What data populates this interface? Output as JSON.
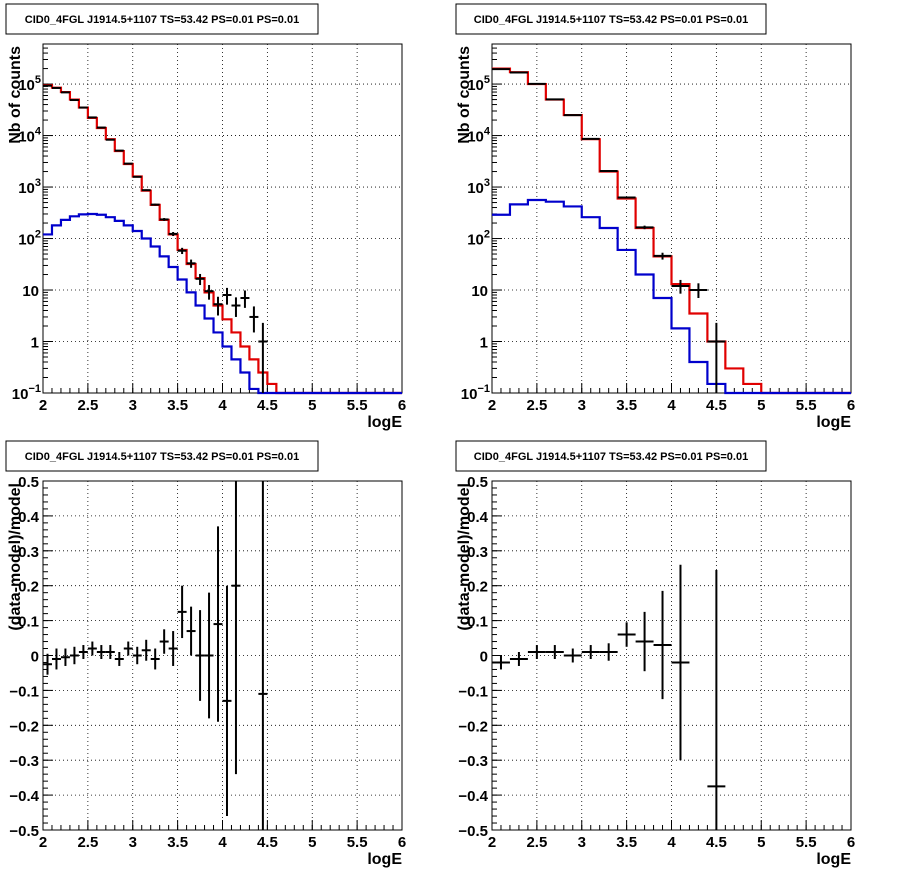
{
  "chart_data": [
    {
      "type": "line",
      "title": "CID0_4FGL J1914.5+1107 TS=53.42 PS=0.01 PS=0.01",
      "xlabel": "logE",
      "ylabel": "Nb of counts",
      "xlim": [
        2,
        6
      ],
      "ylim": [
        0.1,
        600000
      ],
      "log_y": true,
      "grid": true,
      "x_ticks": [
        "2",
        "2.5",
        "3",
        "3.5",
        "4",
        "4.5",
        "5",
        "5.5",
        "6"
      ],
      "y_ticks": [
        {
          "value": 0.1,
          "label": "10",
          "sup": "−1"
        },
        {
          "value": 1,
          "label": "1",
          "sup": ""
        },
        {
          "value": 10,
          "label": "10",
          "sup": ""
        },
        {
          "value": 100,
          "label": "10",
          "sup": "2"
        },
        {
          "value": 1000,
          "label": "10",
          "sup": "3"
        },
        {
          "value": 10000,
          "label": "10",
          "sup": "4"
        },
        {
          "value": 100000,
          "label": "10",
          "sup": "5"
        }
      ],
      "bin_edges": [
        2.0,
        2.1,
        2.2,
        2.3,
        2.4,
        2.5,
        2.6,
        2.7,
        2.8,
        2.9,
        3.0,
        3.1,
        3.2,
        3.3,
        3.4,
        3.5,
        3.6,
        3.7,
        3.8,
        3.9,
        4.0,
        4.1,
        4.2,
        4.3,
        4.4,
        4.5,
        4.6,
        4.7,
        4.8,
        4.9,
        5.0,
        5.1,
        5.2,
        5.3,
        5.4,
        5.5,
        5.6,
        5.7,
        5.8,
        5.9,
        6.0
      ],
      "series": [
        {
          "color": "#e00000",
          "style": "step",
          "values": [
            95000,
            85000,
            70000,
            50000,
            35000,
            22000,
            14000,
            8500,
            5000,
            2800,
            1600,
            850,
            450,
            230,
            120,
            60,
            32,
            17,
            9,
            5,
            2.7,
            1.5,
            0.8,
            0.45,
            0.25,
            0.15,
            0.1,
            0.1,
            0.1,
            0.1,
            0.1,
            0.1,
            0.1,
            0.1,
            0.1,
            0.1,
            0.1,
            0.1,
            0.1,
            0.1
          ]
        },
        {
          "color": "#0000cc",
          "style": "step",
          "values": [
            120,
            180,
            230,
            270,
            295,
            300,
            290,
            260,
            220,
            180,
            140,
            100,
            70,
            45,
            28,
            16,
            9,
            5,
            2.8,
            1.5,
            0.8,
            0.45,
            0.25,
            0.12,
            0.1,
            0.1,
            0.1,
            0.1,
            0.1,
            0.1,
            0.1,
            0.1,
            0.1,
            0.1,
            0.1,
            0.1,
            0.1,
            0.1,
            0.1,
            0.1
          ]
        },
        {
          "color": "#000000",
          "style": "points",
          "x": [
            2.05,
            2.15,
            2.25,
            2.35,
            2.45,
            2.55,
            2.65,
            2.75,
            2.85,
            2.95,
            3.05,
            3.15,
            3.25,
            3.35,
            3.45,
            3.55,
            3.65,
            3.75,
            3.85,
            3.95,
            4.05,
            4.15,
            4.25,
            4.35,
            4.45
          ],
          "y": [
            93000,
            84000,
            69000,
            49000,
            35000,
            22500,
            14300,
            8300,
            5100,
            2850,
            1580,
            870,
            455,
            235,
            123,
            58,
            33,
            16.5,
            9.5,
            5.3,
            8,
            5,
            7,
            3,
            1
          ],
          "ylow": [
            92000,
            83000,
            68000,
            48500,
            34500,
            22200,
            14100,
            8200,
            5000,
            2800,
            1540,
            840,
            435,
            220,
            112,
            50,
            27,
            12.5,
            6.5,
            3.2,
            5.2,
            3,
            4.5,
            1.5,
            0.1
          ],
          "yhigh": [
            94000,
            85000,
            70000,
            49500,
            35500,
            22800,
            14500,
            8400,
            5200,
            2900,
            1620,
            900,
            475,
            250,
            134,
            66,
            39,
            20.5,
            12.5,
            7.4,
            11,
            7.2,
            9.8,
            4.8,
            2.3
          ]
        }
      ]
    },
    {
      "type": "line",
      "title": "CID0_4FGL J1914.5+1107 TS=53.42 PS=0.01 PS=0.01",
      "xlabel": "logE",
      "ylabel": "Nb of counts",
      "xlim": [
        2,
        6
      ],
      "ylim": [
        0.1,
        600000
      ],
      "log_y": true,
      "grid": true,
      "x_ticks": [
        "2",
        "2.5",
        "3",
        "3.5",
        "4",
        "4.5",
        "5",
        "5.5",
        "6"
      ],
      "y_ticks": [
        {
          "value": 0.1,
          "label": "10",
          "sup": "−1"
        },
        {
          "value": 1,
          "label": "1",
          "sup": ""
        },
        {
          "value": 10,
          "label": "10",
          "sup": ""
        },
        {
          "value": 100,
          "label": "10",
          "sup": "2"
        },
        {
          "value": 1000,
          "label": "10",
          "sup": "3"
        },
        {
          "value": 10000,
          "label": "10",
          "sup": "4"
        },
        {
          "value": 100000,
          "label": "10",
          "sup": "5"
        }
      ],
      "bin_edges": [
        2.0,
        2.2,
        2.4,
        2.6,
        2.8,
        3.0,
        3.2,
        3.4,
        3.6,
        3.8,
        4.0,
        4.2,
        4.4,
        4.6,
        4.8,
        5.0,
        5.2,
        5.4,
        5.6,
        5.8,
        6.0
      ],
      "series": [
        {
          "color": "#e00000",
          "style": "step",
          "values": [
            200000,
            170000,
            100000,
            50000,
            25000,
            8500,
            2000,
            600,
            160,
            45,
            13,
            3.5,
            1,
            0.3,
            0.15,
            0.1,
            0.1,
            0.1,
            0.1,
            0.1
          ]
        },
        {
          "color": "#0000cc",
          "style": "step",
          "values": [
            290,
            460,
            560,
            520,
            420,
            260,
            160,
            60,
            20,
            7,
            1.8,
            0.4,
            0.15,
            0.1,
            0.1,
            0.1,
            0.1,
            0.1,
            0.1,
            0.1
          ]
        },
        {
          "color": "#000000",
          "style": "points",
          "x": [
            2.1,
            2.3,
            2.5,
            2.7,
            2.9,
            3.1,
            3.3,
            3.5,
            3.7,
            3.9,
            4.1,
            4.3,
            4.5
          ],
          "y": [
            195000,
            168000,
            101000,
            50500,
            24900,
            8600,
            2050,
            625,
            165,
            46,
            12,
            10,
            1
          ],
          "ylow": [
            194000,
            167000,
            100500,
            50200,
            24750,
            8500,
            1990,
            600,
            152,
            39,
            8.5,
            7,
            0.1
          ],
          "yhigh": [
            196000,
            169000,
            101500,
            50800,
            25050,
            8700,
            2110,
            650,
            178,
            53,
            15.7,
            13.5,
            2.3
          ]
        }
      ]
    },
    {
      "type": "scatter",
      "title": "CID0_4FGL J1914.5+1107 TS=53.42 PS=0.01 PS=0.01",
      "xlabel": "logE",
      "ylabel": "(data-model)/model",
      "xlim": [
        2,
        6
      ],
      "ylim": [
        -0.5,
        0.5
      ],
      "grid": true,
      "x_ticks": [
        "2",
        "2.5",
        "3",
        "3.5",
        "4",
        "4.5",
        "5",
        "5.5",
        "6"
      ],
      "y_ticks": [
        "−0.5",
        "−0.4",
        "−0.3",
        "−0.2",
        "−0.1",
        "0",
        "0.1",
        "0.2",
        "0.3",
        "0.4",
        "0.5"
      ],
      "series": [
        {
          "color": "#000000",
          "style": "points",
          "xerr": 0.05,
          "x": [
            2.05,
            2.15,
            2.25,
            2.35,
            2.45,
            2.55,
            2.65,
            2.75,
            2.85,
            2.95,
            3.05,
            3.15,
            3.25,
            3.35,
            3.45,
            3.55,
            3.65,
            3.75,
            3.85,
            3.95,
            4.05,
            4.15,
            4.45
          ],
          "y": [
            -0.025,
            -0.01,
            -0.005,
            0.0,
            0.01,
            0.02,
            0.01,
            0.01,
            -0.01,
            0.02,
            0.0,
            0.015,
            -0.01,
            0.04,
            0.02,
            0.125,
            0.07,
            0.0,
            0.0,
            0.09,
            -0.13,
            0.2,
            -0.11
          ],
          "yerr": [
            0.03,
            0.03,
            0.025,
            0.025,
            0.02,
            0.02,
            0.02,
            0.02,
            0.02,
            0.02,
            0.025,
            0.03,
            0.03,
            0.035,
            0.05,
            0.075,
            0.07,
            0.13,
            0.18,
            0.28,
            0.33,
            0.54,
            0.69
          ]
        }
      ]
    },
    {
      "type": "scatter",
      "title": "CID0_4FGL J1914.5+1107 TS=53.42 PS=0.01 PS=0.01",
      "xlabel": "logE",
      "ylabel": "(data-model)/model",
      "xlim": [
        2,
        6
      ],
      "ylim": [
        -0.5,
        0.5
      ],
      "grid": true,
      "x_ticks": [
        "2",
        "2.5",
        "3",
        "3.5",
        "4",
        "4.5",
        "5",
        "5.5",
        "6"
      ],
      "y_ticks": [
        "−0.5",
        "−0.4",
        "−0.3",
        "−0.2",
        "−0.1",
        "0",
        "0.1",
        "0.2",
        "0.3",
        "0.4",
        "0.5"
      ],
      "series": [
        {
          "color": "#000000",
          "style": "points",
          "xerr": 0.1,
          "x": [
            2.1,
            2.3,
            2.5,
            2.7,
            2.9,
            3.1,
            3.3,
            3.5,
            3.7,
            3.9,
            4.1,
            4.5
          ],
          "y": [
            -0.02,
            -0.01,
            0.01,
            0.01,
            0.0,
            0.01,
            0.01,
            0.06,
            0.04,
            0.03,
            -0.02,
            -0.375
          ],
          "yerr": [
            0.02,
            0.02,
            0.02,
            0.02,
            0.02,
            0.02,
            0.025,
            0.035,
            0.085,
            0.155,
            0.28,
            0.62
          ]
        }
      ]
    }
  ]
}
